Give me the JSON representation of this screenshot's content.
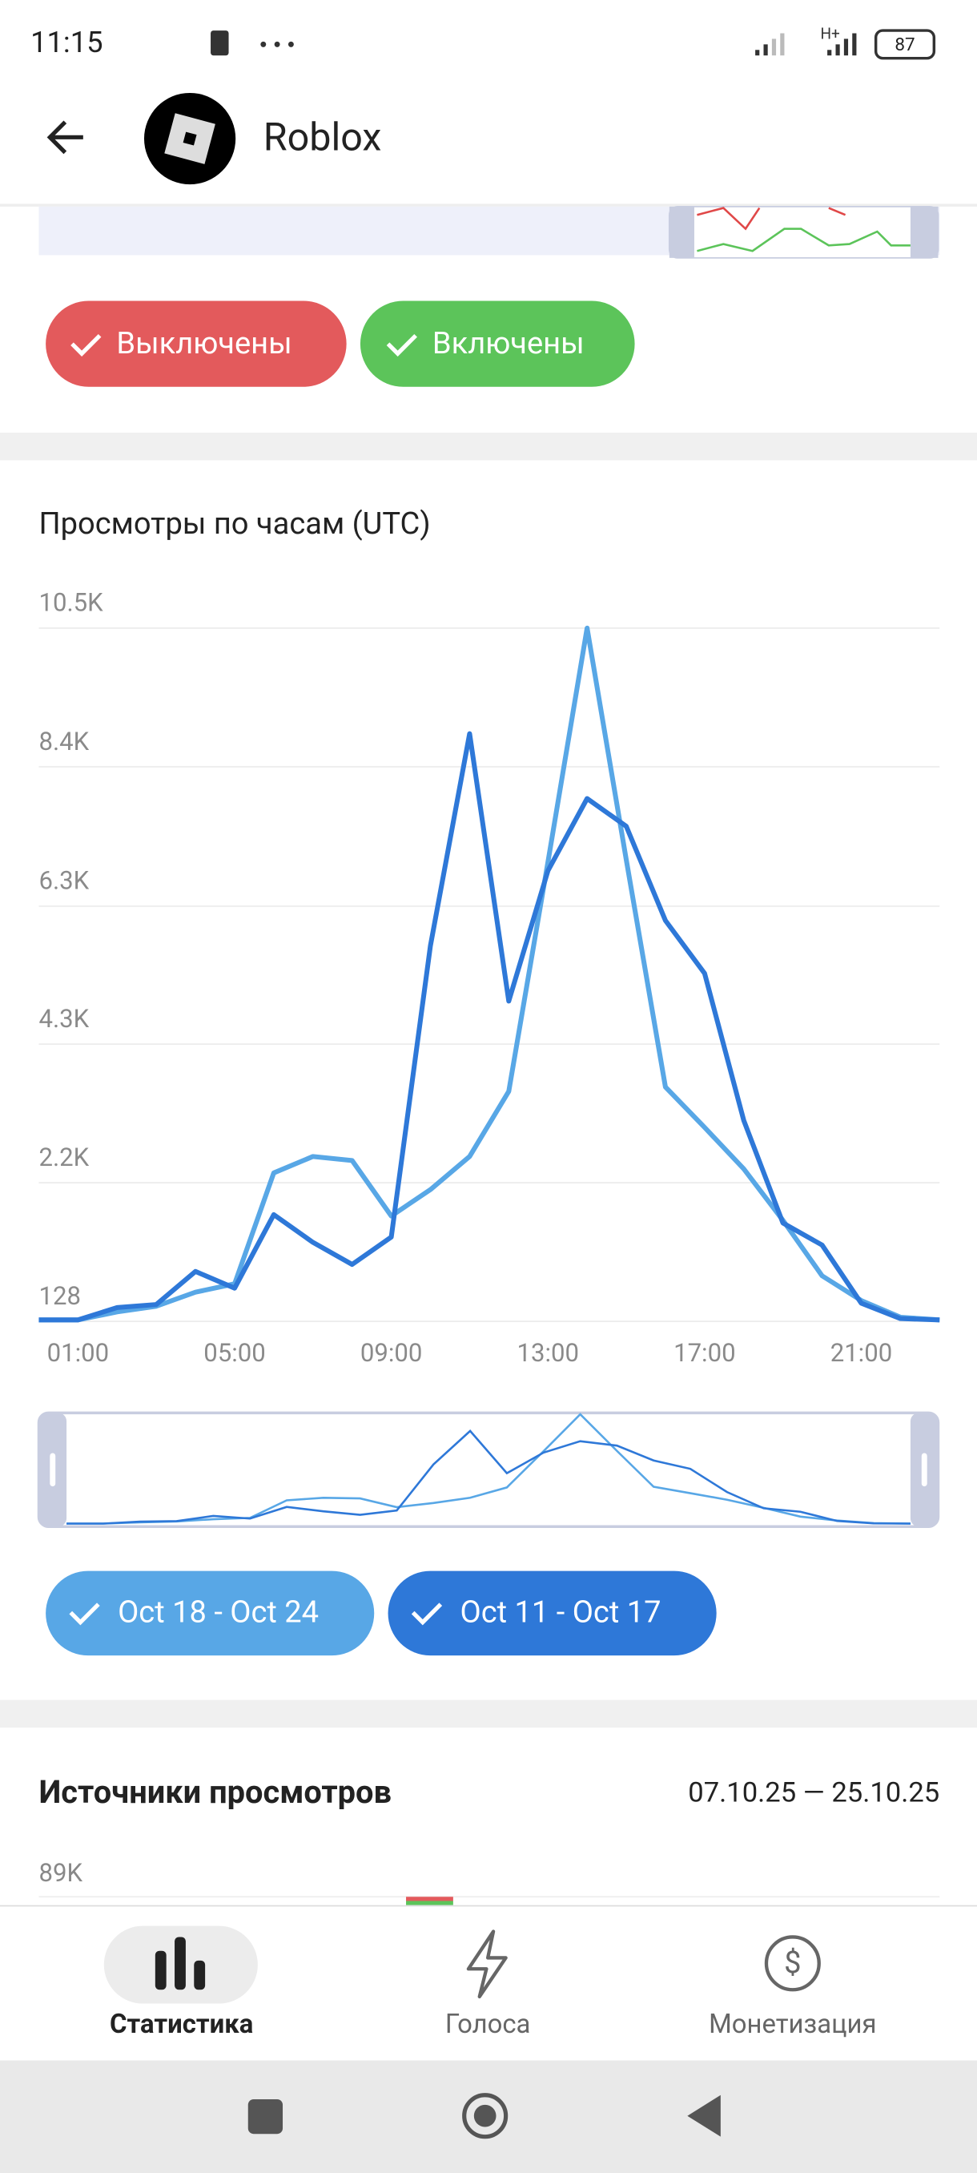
{
  "status_bar": {
    "time": "11:15",
    "network": "H+",
    "battery": "87"
  },
  "header": {
    "title": "Roblox"
  },
  "filters_top": [
    "Выключены",
    "Включены"
  ],
  "chart_data": {
    "type": "line",
    "title": "Просмотры по часам (UTC)",
    "categories": [
      null,
      "01:00",
      null,
      null,
      null,
      "05:00",
      null,
      null,
      null,
      "09:00",
      null,
      null,
      null,
      "13:00",
      null,
      null,
      null,
      "17:00",
      null,
      null,
      null,
      "21:00",
      null,
      null
    ],
    "series": [
      {
        "name": "Oct 18 - Oct 24",
        "color": "#58a7e6",
        "values": [
          150,
          150,
          270,
          355,
          565,
          690,
          2350,
          2595,
          2535,
          1705,
          2100,
          2595,
          3570,
          7000,
          10500,
          7035,
          3635,
          3030,
          2410,
          1640,
          810,
          440,
          190,
          150
        ]
      },
      {
        "name": "Oct 11 - Oct 17",
        "color": "#2e78d8",
        "values": [
          150,
          150,
          335,
          380,
          875,
          625,
          1725,
          1310,
          980,
          1390,
          5750,
          8920,
          4920,
          6870,
          7950,
          7535,
          6125,
          5335,
          3135,
          1600,
          1270,
          400,
          170,
          150
        ]
      }
    ],
    "ylim": [
      128,
      10500
    ],
    "yticks": [
      128,
      {
        "value": 2202,
        "label": "2.2K"
      },
      {
        "value": 4276,
        "label": "4.3K"
      },
      {
        "value": 6340,
        "label": "6.3K"
      },
      {
        "value": 8425,
        "label": "8.4K"
      },
      {
        "value": 10500,
        "label": "10.5K"
      }
    ],
    "grid": true
  },
  "sources": {
    "title": "Источники просмотров",
    "date_range": "07.10.25 — 25.10.25",
    "ytick": "89K"
  },
  "nav": [
    "Статистика",
    "Голоса",
    "Монетизация"
  ]
}
